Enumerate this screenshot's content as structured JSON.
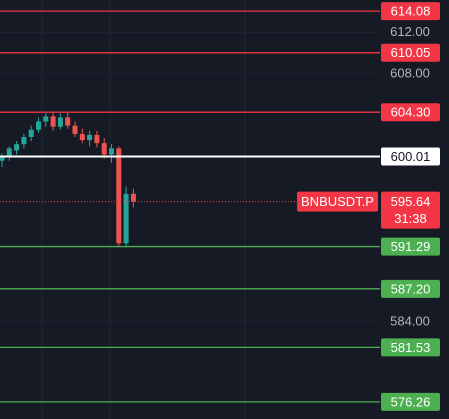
{
  "chart_data": {
    "type": "candlestick",
    "symbol": "BNBUSDT.P",
    "ylim": [
      574.6,
      615.16
    ],
    "yticks": [
      {
        "value": 612,
        "label": "612.00"
      },
      {
        "value": 608,
        "label": "608.00"
      },
      {
        "value": 584,
        "label": "584.00"
      }
    ],
    "open": [
      599.6,
      600.0,
      600.6,
      601.2,
      601.9,
      602.6,
      603.4,
      603.9,
      602.9,
      603.8,
      603.0,
      602.2,
      601.6,
      602.1,
      601.3,
      600.2,
      600.8,
      591.6,
      596.4
    ],
    "high": [
      600.3,
      601.0,
      601.5,
      602.2,
      603.0,
      603.8,
      604.2,
      604.3,
      604.2,
      604.3,
      603.4,
      602.7,
      602.5,
      602.5,
      601.8,
      601.2,
      601.0,
      597.1,
      596.9
    ],
    "low": [
      599.0,
      599.6,
      600.2,
      600.8,
      601.5,
      602.3,
      602.9,
      602.5,
      602.6,
      602.7,
      601.9,
      601.3,
      601.0,
      600.9,
      599.8,
      599.4,
      591.3,
      591.2,
      595.1
    ],
    "close": [
      600.0,
      600.8,
      601.2,
      601.9,
      602.6,
      603.4,
      603.9,
      602.9,
      603.8,
      603.0,
      602.2,
      601.6,
      602.1,
      601.3,
      600.2,
      600.8,
      591.6,
      596.4,
      595.64
    ],
    "up_color": "#26a69a",
    "down_color": "#ef5350",
    "levels": {
      "values": [
        614.08,
        610.05,
        604.3,
        600.01,
        591.29,
        587.2,
        581.53,
        576.26
      ],
      "value_labels": [
        "614.08",
        "610.05",
        "604.30",
        "600.01",
        "591.29",
        "587.20",
        "581.53",
        "576.26"
      ],
      "colors": [
        "#f23645",
        "#f23645",
        "#f23645",
        "#ffffff",
        "#4caf50",
        "#4caf50",
        "#4caf50",
        "#4caf50"
      ]
    },
    "last_price": 595.64,
    "countdown": "31:38",
    "last_price_color": "#f23645"
  }
}
